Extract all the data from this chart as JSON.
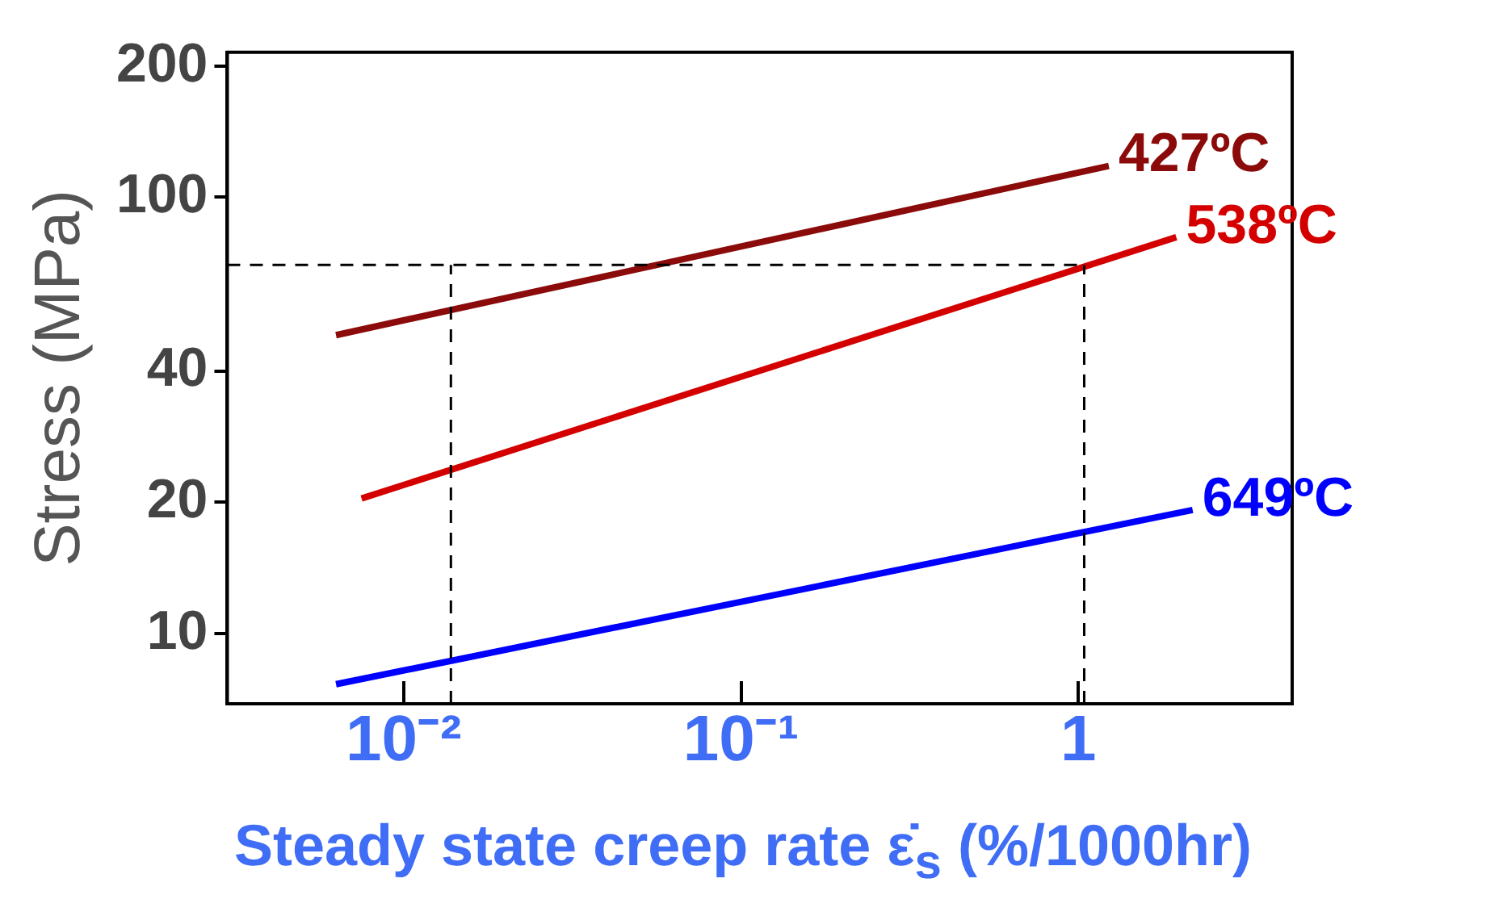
{
  "chart_data": {
    "type": "line",
    "xlabel": "Steady state creep rate ε̇$_{s}$ (%/1000hr)",
    "ylabel": "Stress (MPa)",
    "log": "xy",
    "grid": false,
    "legend": false,
    "marker": "none",
    "line_style": "solid",
    "xlim": [
      0.003,
      4.3
    ],
    "xticks": [
      {
        "value": 0.01,
        "label": "10⁻²"
      },
      {
        "value": 0.1,
        "label": "10⁻¹"
      },
      1
    ],
    "ylim": [
      6.9,
      215
    ],
    "yticks": [
      10,
      20,
      40,
      100,
      200
    ],
    "series": [
      {
        "name": "427ºC",
        "color": "#8b0a0a",
        "x": [
          0.0063,
          1.23
        ],
        "values": [
          48.3,
          118
        ]
      },
      {
        "name": "538ºC",
        "color": "#d40000",
        "x": [
          0.0075,
          1.95
        ],
        "values": [
          20.4,
          81
        ]
      },
      {
        "name": "649ºC",
        "color": "#0000ff",
        "x": [
          0.0063,
          2.18
        ],
        "values": [
          7.65,
          19.2
        ]
      }
    ],
    "ref_lines": [
      {
        "axis": "y",
        "value": 70,
        "color": "#000000",
        "line_style": "dashed"
      },
      {
        "axis": "x",
        "value": 0.0138,
        "color": "#000000",
        "line_style": "dashed"
      },
      {
        "axis": "x",
        "value": 1.04,
        "color": "#000000",
        "line_style": "dashed"
      }
    ]
  }
}
